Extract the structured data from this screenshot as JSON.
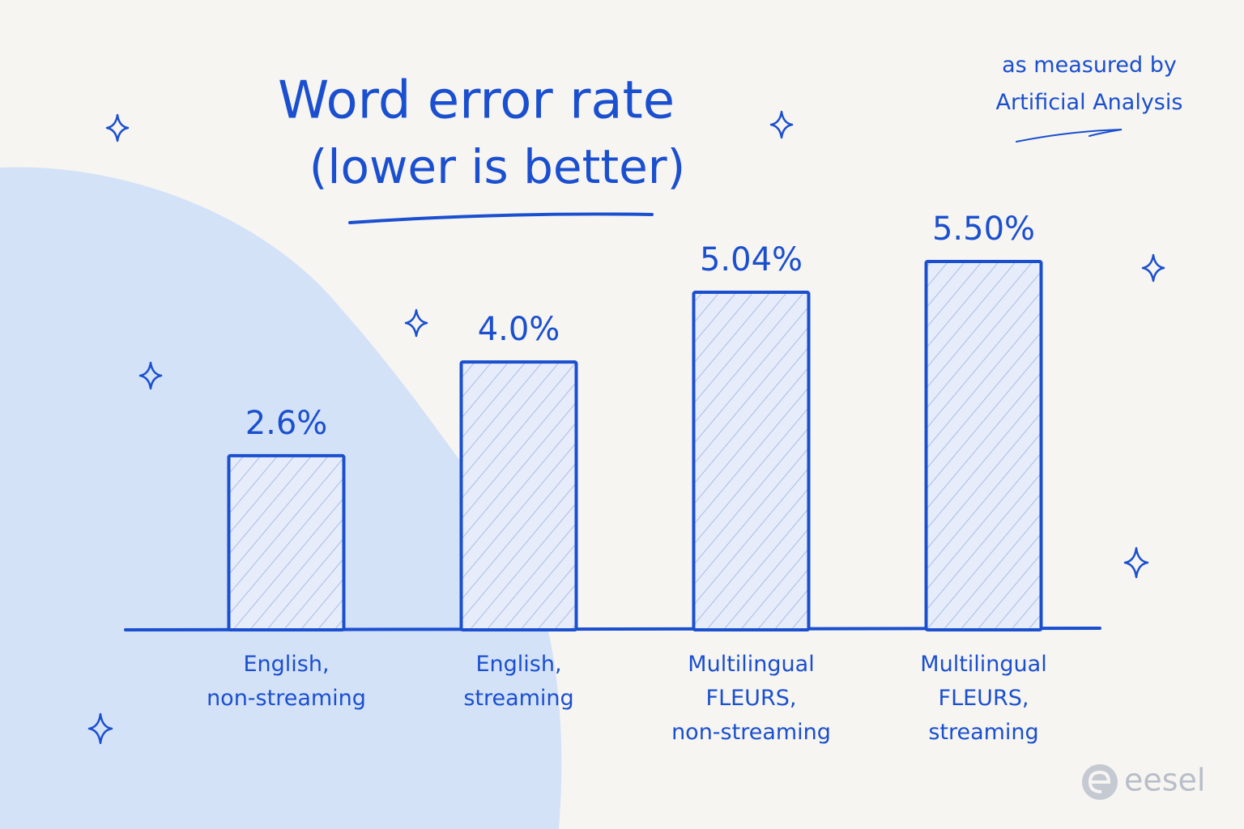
{
  "chart_data": {
    "type": "bar",
    "title": "Word error rate",
    "subtitle": "(lower is better)",
    "annotation": "as measured by\nArtificial Analysis",
    "categories": [
      "English,\nnon-streaming",
      "English,\nstreaming",
      "Multilingual\nFLEURS,\nnon-streaming",
      "Multilingual\nFLEURS,\nstreaming"
    ],
    "values": [
      2.6,
      4.0,
      5.04,
      5.5
    ],
    "value_labels": [
      "2.6%",
      "4.0%",
      "5.04%",
      "5.50%"
    ],
    "color": "#1a4fcf"
  },
  "logo": "eesel"
}
